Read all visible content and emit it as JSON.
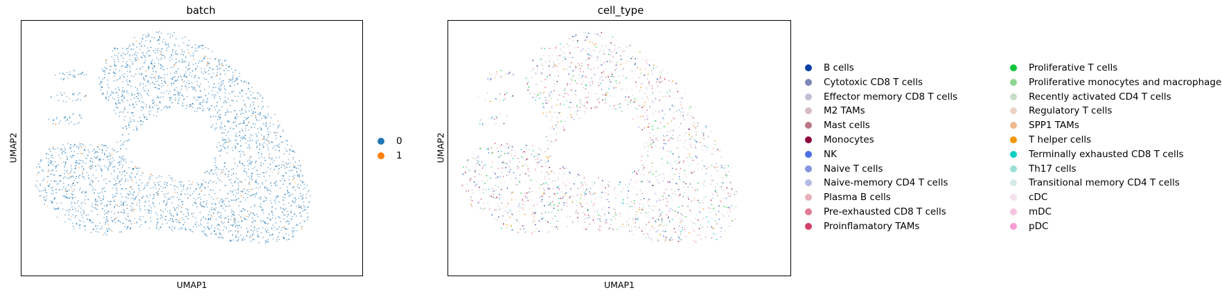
{
  "chart_data": [
    {
      "type": "scatter",
      "title": "batch",
      "xlabel": "UMAP1",
      "ylabel": "UMAP2",
      "grid": false,
      "ticks": "none",
      "legend_position": "right",
      "series": [
        {
          "name": "0",
          "color": "#1f77b4"
        },
        {
          "name": "1",
          "color": "#ff7f0e"
        }
      ]
    },
    {
      "type": "scatter",
      "title": "cell_type",
      "xlabel": "UMAP1",
      "ylabel": "UMAP2",
      "grid": false,
      "ticks": "none",
      "legend_position": "right",
      "series": [
        {
          "name": "B cells",
          "color": "#023fa5"
        },
        {
          "name": "Cytotoxic CD8 T cells",
          "color": "#7d87b9"
        },
        {
          "name": "Effector memory CD8 T cells",
          "color": "#bec1d4"
        },
        {
          "name": "M2 TAMs",
          "color": "#d6bcc0"
        },
        {
          "name": "Mast cells",
          "color": "#bb7784"
        },
        {
          "name": "Monocytes",
          "color": "#8e063b"
        },
        {
          "name": "NK",
          "color": "#4a6fe3"
        },
        {
          "name": "Naive T cells",
          "color": "#8595e1"
        },
        {
          "name": "Naive-memory CD4 T cells",
          "color": "#b5bbe3"
        },
        {
          "name": "Plasma B cells",
          "color": "#e6afb9"
        },
        {
          "name": "Pre-exhausted CD8 T cells",
          "color": "#e07b91"
        },
        {
          "name": "Proinflamatory TAMs",
          "color": "#d33f6a"
        },
        {
          "name": "Proliferative T cells",
          "color": "#11c638"
        },
        {
          "name": "Proliferative monocytes and macrophages",
          "color": "#8dd593"
        },
        {
          "name": "Recently activated CD4 T cells",
          "color": "#c6dec7"
        },
        {
          "name": "Regulatory T cells",
          "color": "#ead3c6"
        },
        {
          "name": "SPP1 TAMs",
          "color": "#f0b98d"
        },
        {
          "name": "T helper cells",
          "color": "#ef9708"
        },
        {
          "name": "Terminally exhausted CD8 T cells",
          "color": "#0fcfc0"
        },
        {
          "name": "Th17 cells",
          "color": "#9cded6"
        },
        {
          "name": "Transitional memory CD4 T cells",
          "color": "#d5eae7"
        },
        {
          "name": "cDC",
          "color": "#f3e1eb"
        },
        {
          "name": "mDC",
          "color": "#f6c4e1"
        },
        {
          "name": "pDC",
          "color": "#f79cd4"
        }
      ]
    }
  ]
}
